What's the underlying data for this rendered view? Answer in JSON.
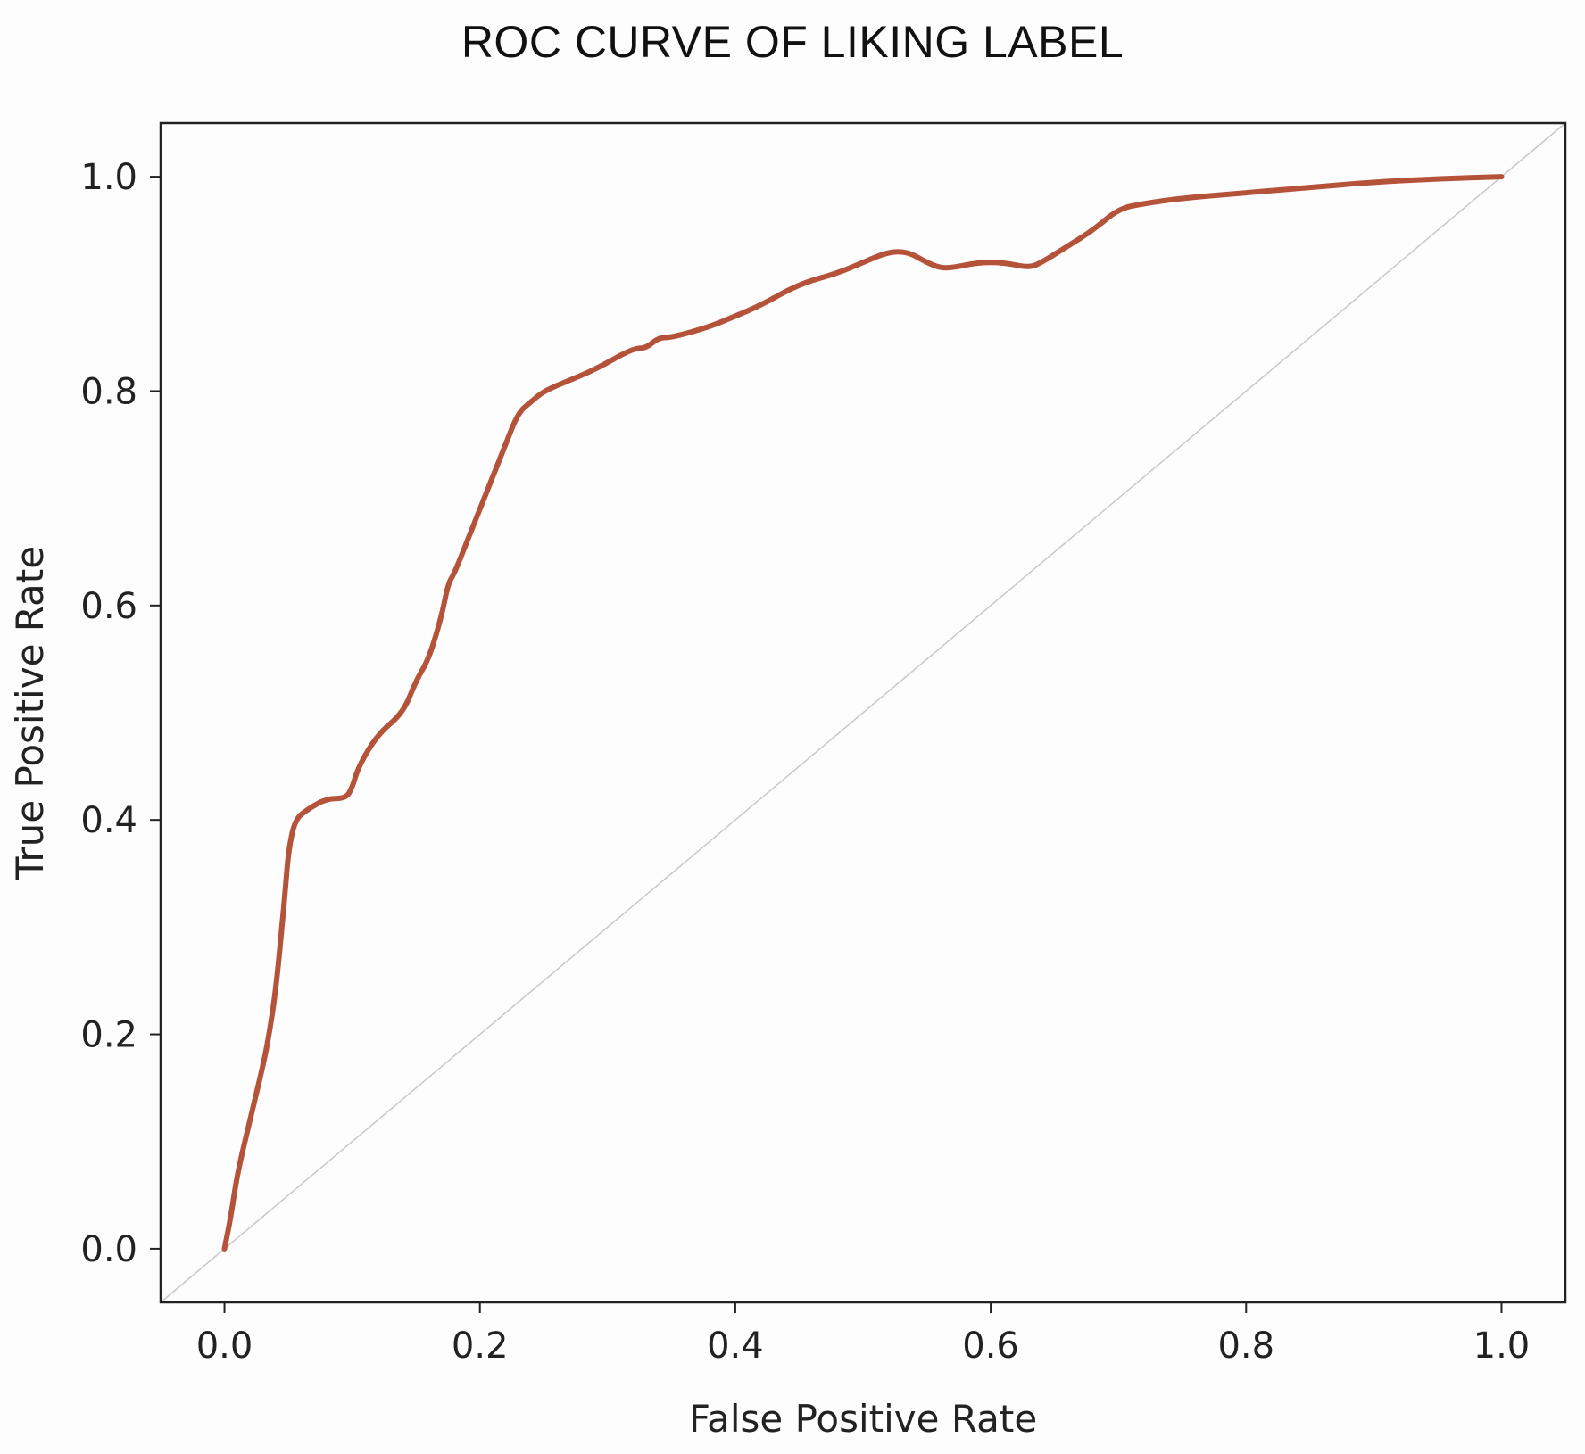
{
  "chart_data": {
    "type": "line",
    "title": "ROC CURVE OF LIKING LABEL",
    "xlabel": "False Positive Rate",
    "ylabel": "True Positive Rate",
    "xlim": [
      -0.05,
      1.05
    ],
    "ylim": [
      -0.05,
      1.05
    ],
    "xticks": [
      0.0,
      0.2,
      0.4,
      0.6,
      0.8,
      1.0
    ],
    "yticks": [
      0.0,
      0.2,
      0.4,
      0.6,
      0.8,
      1.0
    ],
    "tick_labels": [
      "0.0",
      "0.2",
      "0.4",
      "0.6",
      "0.8",
      "1.0"
    ],
    "grid": false,
    "colors": {
      "curve": "#b5533a",
      "diagonal": "#c8c8c8",
      "axes": "#222222"
    },
    "series": [
      {
        "x": [
          0.0,
          0.005,
          0.01,
          0.02,
          0.03,
          0.035,
          0.04,
          0.045,
          0.048,
          0.05,
          0.055,
          0.065,
          0.08,
          0.095,
          0.1,
          0.105,
          0.12,
          0.14,
          0.15,
          0.16,
          0.17,
          0.175,
          0.18,
          0.19,
          0.2,
          0.21,
          0.22,
          0.23,
          0.24,
          0.25,
          0.27,
          0.29,
          0.32,
          0.33,
          0.34,
          0.35,
          0.38,
          0.4,
          0.42,
          0.45,
          0.48,
          0.5,
          0.52,
          0.535,
          0.55,
          0.56,
          0.57,
          0.59,
          0.61,
          0.63,
          0.64,
          0.66,
          0.68,
          0.7,
          0.72,
          0.75,
          0.8,
          0.85,
          0.9,
          0.95,
          1.0
        ],
        "y": [
          0.0,
          0.03,
          0.07,
          0.12,
          0.17,
          0.2,
          0.24,
          0.3,
          0.34,
          0.37,
          0.4,
          0.41,
          0.42,
          0.42,
          0.43,
          0.45,
          0.48,
          0.5,
          0.53,
          0.55,
          0.59,
          0.62,
          0.63,
          0.66,
          0.69,
          0.72,
          0.75,
          0.78,
          0.79,
          0.8,
          0.81,
          0.82,
          0.84,
          0.84,
          0.85,
          0.85,
          0.86,
          0.87,
          0.88,
          0.9,
          0.91,
          0.92,
          0.93,
          0.93,
          0.92,
          0.915,
          0.915,
          0.92,
          0.92,
          0.915,
          0.92,
          0.935,
          0.95,
          0.97,
          0.975,
          0.98,
          0.985,
          0.99,
          0.995,
          0.998,
          1.0
        ]
      }
    ]
  }
}
